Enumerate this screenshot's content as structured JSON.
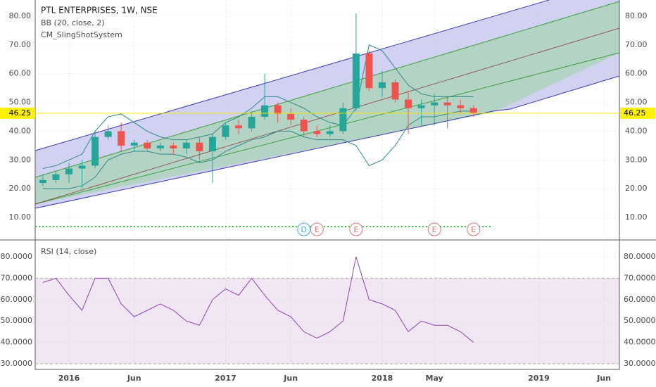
{
  "chart_data": {
    "type": "candlestick",
    "title": "PTL ENTERPRISES, 1W, NSE",
    "indicators": [
      "BB (20, close, 2)",
      "CM_SlingShotSystem"
    ],
    "last": {
      "value": 46.25,
      "label": "46.25"
    },
    "x": [
      "2015-11",
      "2015-12",
      "2016-01",
      "2016-02",
      "2016-03",
      "2016-04",
      "2016-05",
      "2016-06",
      "2016-07",
      "2016-08",
      "2016-09",
      "2016-10",
      "2016-11",
      "2016-12",
      "2017-01",
      "2017-02",
      "2017-03",
      "2017-04",
      "2017-05",
      "2017-06",
      "2017-07",
      "2017-08",
      "2017-09",
      "2017-10",
      "2017-11",
      "2017-12",
      "2018-01",
      "2018-02",
      "2018-03",
      "2018-04",
      "2018-05",
      "2018-06",
      "2018-07",
      "2018-08"
    ],
    "open": [
      22,
      23,
      25,
      27,
      28,
      38,
      40,
      35,
      36,
      34,
      35,
      34,
      36,
      33,
      38,
      42,
      41,
      45,
      49,
      46,
      44,
      40,
      39,
      40,
      48,
      67,
      55,
      57,
      51,
      48,
      49,
      50,
      49,
      48
    ],
    "high": [
      25,
      26,
      29,
      30,
      40,
      42,
      43,
      37,
      37,
      36,
      36,
      37,
      38,
      39,
      43,
      44,
      47,
      60,
      50,
      48,
      45,
      42,
      42,
      50,
      81,
      68,
      61,
      58,
      54,
      51,
      53,
      52,
      51,
      49
    ],
    "low": [
      21,
      22,
      22,
      20,
      27,
      37,
      33,
      33,
      33,
      33,
      32,
      32,
      30,
      22,
      37,
      39,
      40,
      44,
      43,
      42,
      38,
      38,
      38,
      39,
      47,
      54,
      52,
      50,
      39,
      42,
      42,
      41,
      46,
      45
    ],
    "close": [
      23,
      25,
      27,
      28,
      38,
      40,
      35,
      36,
      34,
      35,
      34,
      36,
      33,
      38,
      42,
      41,
      45,
      49,
      46,
      44,
      40,
      39,
      40,
      48,
      67,
      55,
      57,
      51,
      48,
      49,
      50,
      49,
      48,
      46.25
    ],
    "bb_upper": [
      27,
      28,
      30,
      32,
      40,
      45,
      46,
      43,
      40,
      38,
      37,
      37,
      38,
      39,
      43,
      45,
      48,
      52,
      52,
      50,
      48,
      45,
      43,
      42,
      48,
      70,
      68,
      62,
      56,
      53,
      52,
      52,
      52,
      52
    ],
    "bb_lower": [
      20,
      20,
      20,
      21,
      24,
      30,
      32,
      33,
      33,
      32,
      32,
      31,
      29,
      30,
      33,
      35,
      37,
      38,
      40,
      40,
      38,
      37,
      37,
      37,
      35,
      28,
      30,
      35,
      42,
      45,
      45,
      46,
      47,
      47
    ],
    "up_color": "#26a69a",
    "down_color": "#ef5350",
    "bb_color": "#2e8b8b",
    "ylim": [
      3,
      84
    ],
    "yticks": [
      {
        "value": 10,
        "label": "10.00"
      },
      {
        "value": 20,
        "label": "20.00"
      },
      {
        "value": 30,
        "label": "30.00"
      },
      {
        "value": 40,
        "label": "40.00"
      },
      {
        "value": 50,
        "label": "50.00"
      },
      {
        "value": 60,
        "label": "60.00"
      },
      {
        "value": 70,
        "label": "70.00"
      },
      {
        "value": 80,
        "label": "80.00"
      }
    ],
    "xticks": [
      {
        "value": "2016-01",
        "label": "2016"
      },
      {
        "value": "2016-06",
        "label": "Jun"
      },
      {
        "value": "2017-01",
        "label": "2017"
      },
      {
        "value": "2017-06",
        "label": "Jun"
      },
      {
        "value": "2018-01",
        "label": "2018"
      },
      {
        "value": "2018-05",
        "label": "May"
      },
      {
        "value": "2019-01",
        "label": "2019"
      },
      {
        "value": "2019-06",
        "label": "Jun"
      }
    ],
    "events": [
      {
        "x": "2017-07",
        "label": "D"
      },
      {
        "x": "2017-08",
        "label": "E"
      },
      {
        "x": "2017-11",
        "label": "E"
      },
      {
        "x": "2018-05",
        "label": "E"
      },
      {
        "x": "2018-08",
        "label": "E"
      }
    ],
    "rsi": {
      "title": "RSI (14, close)",
      "values": [
        68,
        70,
        62,
        55,
        70,
        70,
        58,
        52,
        55,
        58,
        55,
        50,
        48,
        60,
        65,
        62,
        70,
        62,
        55,
        52,
        45,
        42,
        45,
        50,
        80,
        60,
        58,
        55,
        45,
        50,
        48,
        48,
        45,
        40
      ],
      "color": "#8e44ad",
      "band": [
        30,
        70
      ],
      "ylim": [
        26,
        86
      ],
      "yticks": [
        {
          "value": 30,
          "label": "30.0000"
        },
        {
          "value": 40,
          "label": "40.0000"
        },
        {
          "value": 50,
          "label": "50.0000"
        },
        {
          "value": 60,
          "label": "60.0000"
        },
        {
          "value": 70,
          "label": "70.0000"
        },
        {
          "value": 80,
          "label": "80.0000"
        }
      ]
    }
  }
}
